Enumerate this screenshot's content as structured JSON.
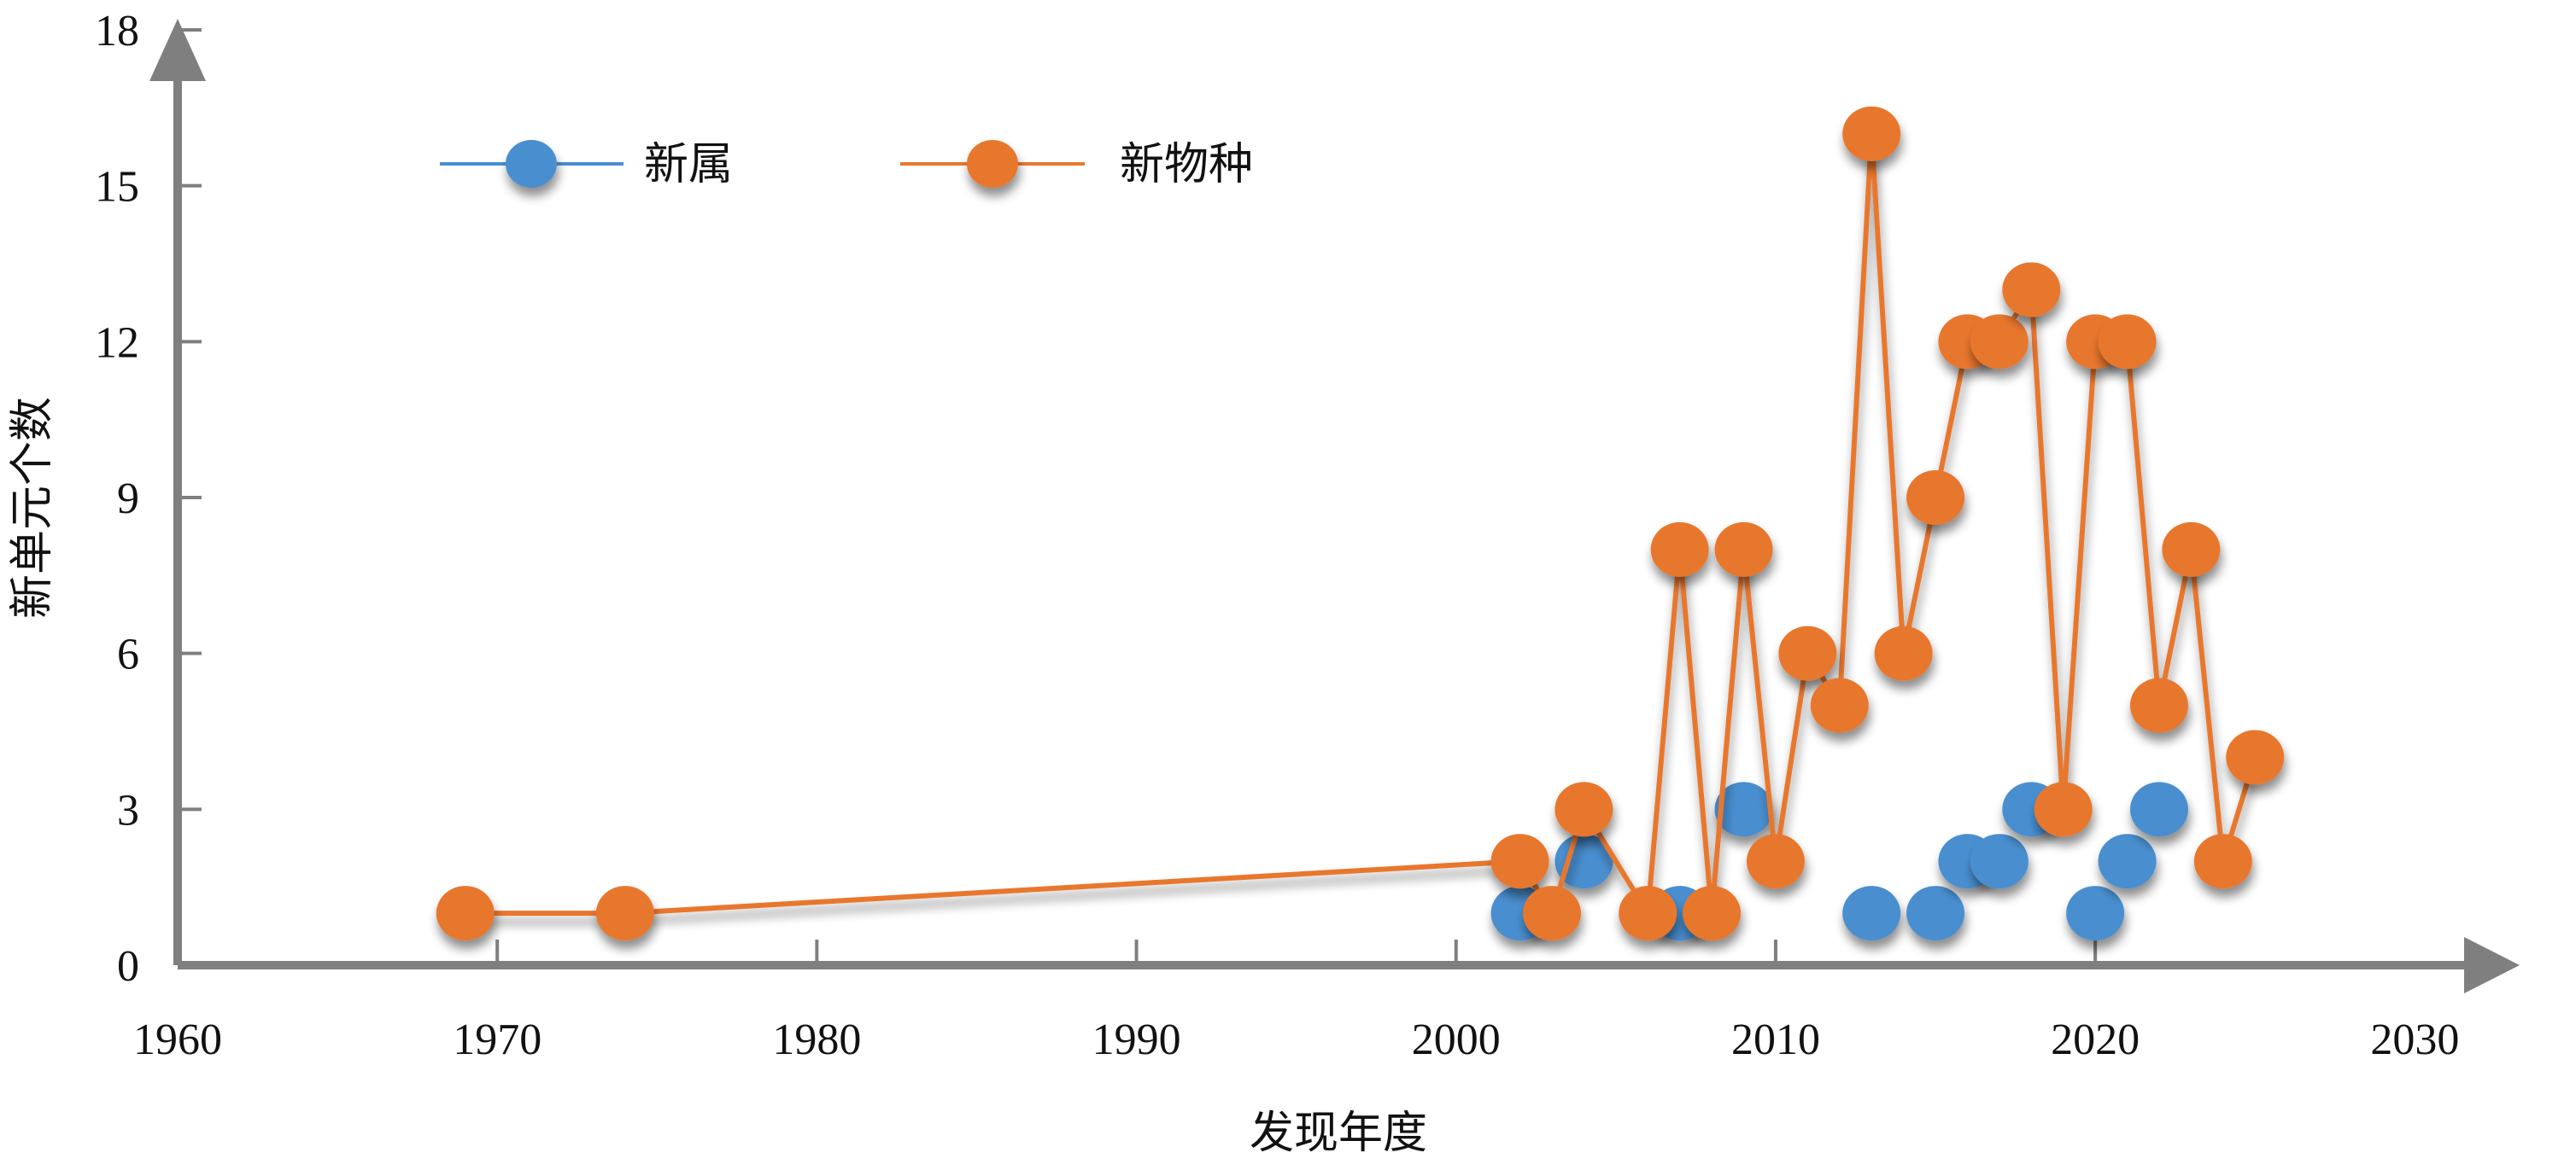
{
  "chart_data": {
    "type": "line",
    "title": "",
    "xlabel": "发现年度",
    "ylabel": "新单元个数",
    "xlim": [
      1960,
      2030
    ],
    "ylim": [
      0,
      18
    ],
    "xticks": [
      1960,
      1970,
      1980,
      1990,
      2000,
      2010,
      2020,
      2030
    ],
    "yticks": [
      0,
      3,
      6,
      9,
      12,
      15,
      18
    ],
    "legend_position": "top-left",
    "series": [
      {
        "name": "新属",
        "color": "#4a8fd0",
        "show_line": false,
        "points": [
          [
            2002,
            1
          ],
          [
            2004,
            2
          ],
          [
            2007,
            1
          ],
          [
            2009,
            3
          ],
          [
            2013,
            1
          ],
          [
            2015,
            1
          ],
          [
            2016,
            2
          ],
          [
            2017,
            2
          ],
          [
            2018,
            3
          ],
          [
            2020,
            1
          ],
          [
            2021,
            2
          ],
          [
            2022,
            3
          ]
        ]
      },
      {
        "name": "新物种",
        "color": "#e8772e",
        "show_line": true,
        "points": [
          [
            1969,
            1
          ],
          [
            1974,
            1
          ],
          [
            2002,
            2
          ],
          [
            2003,
            1
          ],
          [
            2004,
            3
          ],
          [
            2006,
            1
          ],
          [
            2007,
            8
          ],
          [
            2008,
            1
          ],
          [
            2009,
            8
          ],
          [
            2010,
            2
          ],
          [
            2011,
            6
          ],
          [
            2012,
            5
          ],
          [
            2013,
            16
          ],
          [
            2014,
            6
          ],
          [
            2015,
            9
          ],
          [
            2016,
            12
          ],
          [
            2017,
            12
          ],
          [
            2018,
            13
          ],
          [
            2019,
            3
          ],
          [
            2020,
            12
          ],
          [
            2021,
            12
          ],
          [
            2022,
            5
          ],
          [
            2023,
            8
          ],
          [
            2024,
            2
          ],
          [
            2025,
            4
          ]
        ]
      }
    ]
  }
}
